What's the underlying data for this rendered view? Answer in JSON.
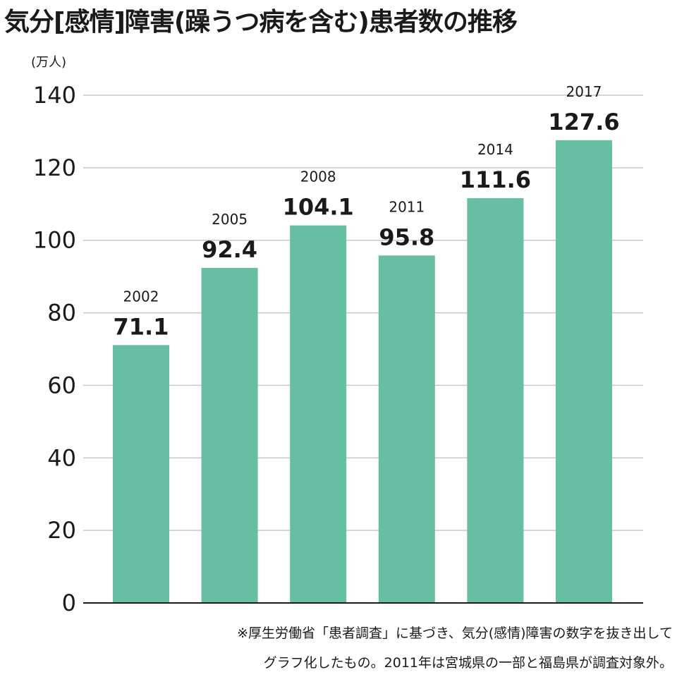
{
  "chart_data": {
    "type": "bar",
    "title": "気分[感情]障害(躁うつ病を含む)患者数の推移",
    "ylabel": "(万人)",
    "xlabel": "",
    "categories": [
      "2002",
      "2005",
      "2008",
      "2011",
      "2014",
      "2017"
    ],
    "values": [
      71.1,
      92.4,
      104.1,
      95.8,
      111.6,
      127.6
    ],
    "value_labels": [
      "71.1",
      "92.4",
      "104.1",
      "95.8",
      "111.6",
      "127.6"
    ],
    "ylim": [
      0,
      140
    ],
    "yticks": [
      0,
      20,
      40,
      60,
      80,
      100,
      120,
      140
    ],
    "ytick_labels": [
      "0",
      "20",
      "40",
      "60",
      "80",
      "100",
      "120",
      "140"
    ],
    "grid": true,
    "legend": "none"
  },
  "colors": {
    "bar": "#66bfa2",
    "grid": "#c8c8c8",
    "axis": "#1a1a1a",
    "text": "#1a1a1a"
  },
  "footnote": {
    "line1": "※厚生労働省「患者調査」に基づき、気分(感情)障害の数字を抜き出して",
    "line2": "グラフ化したもの。2011年は宮城県の一部と福島県が調査対象外。"
  }
}
